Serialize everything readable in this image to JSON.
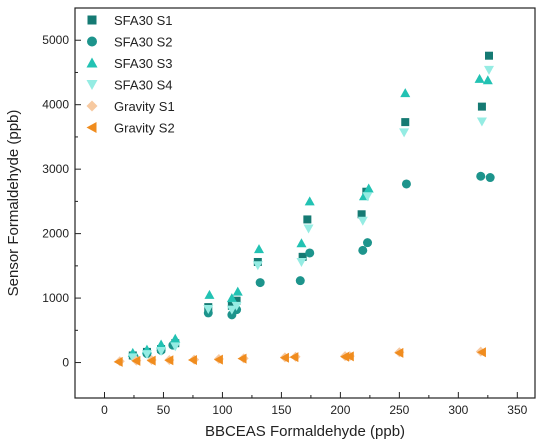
{
  "chart_data": {
    "type": "scatter",
    "title": "",
    "xlabel": "BBCEAS Formaldehyde (ppb)",
    "ylabel": "Sensor Formaldehyde (ppb)",
    "xlim": [
      -25,
      365
    ],
    "ylim": [
      -550,
      5500
    ],
    "x_ticks": [
      0,
      50,
      100,
      150,
      200,
      250,
      300,
      350
    ],
    "y_ticks": [
      0,
      1000,
      2000,
      3000,
      4000,
      5000
    ],
    "grid": false,
    "legend_position": "top-left",
    "series": [
      {
        "name": "SFA30 S1",
        "marker": "square",
        "color": "#157a73",
        "points": [
          [
            24,
            110
          ],
          [
            36,
            165
          ],
          [
            48,
            210
          ],
          [
            60,
            300
          ],
          [
            88,
            860
          ],
          [
            108,
            880
          ],
          [
            112,
            960
          ],
          [
            130,
            1560
          ],
          [
            168,
            1640
          ],
          [
            172,
            2220
          ],
          [
            218,
            2300
          ],
          [
            222,
            2650
          ],
          [
            255,
            3730
          ],
          [
            320,
            3970
          ],
          [
            326,
            4760
          ]
        ]
      },
      {
        "name": "SFA30 S2",
        "marker": "circle",
        "color": "#1d948c",
        "points": [
          [
            25,
            90
          ],
          [
            36,
            140
          ],
          [
            48,
            190
          ],
          [
            58,
            270
          ],
          [
            88,
            770
          ],
          [
            108,
            740
          ],
          [
            112,
            820
          ],
          [
            132,
            1240
          ],
          [
            166,
            1270
          ],
          [
            174,
            1700
          ],
          [
            219,
            1740
          ],
          [
            223,
            1860
          ],
          [
            256,
            2770
          ],
          [
            319,
            2890
          ],
          [
            327,
            2870
          ]
        ]
      },
      {
        "name": "SFA30 S3",
        "marker": "triangle-up",
        "color": "#22c2b3",
        "points": [
          [
            24,
            150
          ],
          [
            36,
            200
          ],
          [
            48,
            280
          ],
          [
            60,
            370
          ],
          [
            89,
            1050
          ],
          [
            108,
            1000
          ],
          [
            113,
            1100
          ],
          [
            131,
            1760
          ],
          [
            167,
            1850
          ],
          [
            174,
            2500
          ],
          [
            220,
            2580
          ],
          [
            224,
            2700
          ],
          [
            255,
            4180
          ],
          [
            318,
            4400
          ],
          [
            325,
            4380
          ]
        ]
      },
      {
        "name": "SFA30 S4",
        "marker": "triangle-down",
        "color": "#95ece3",
        "points": [
          [
            24,
            80
          ],
          [
            36,
            130
          ],
          [
            48,
            180
          ],
          [
            60,
            250
          ],
          [
            88,
            830
          ],
          [
            108,
            820
          ],
          [
            112,
            880
          ],
          [
            130,
            1510
          ],
          [
            167,
            1560
          ],
          [
            173,
            2080
          ],
          [
            219,
            2200
          ],
          [
            223,
            2580
          ],
          [
            254,
            3570
          ],
          [
            320,
            3740
          ],
          [
            326,
            4540
          ]
        ]
      },
      {
        "name": "Gravity S1",
        "marker": "diamond",
        "color": "#f7c9a0",
        "points": [
          [
            13,
            20
          ],
          [
            27,
            30
          ],
          [
            40,
            40
          ],
          [
            55,
            40
          ],
          [
            76,
            45
          ],
          [
            97,
            55
          ],
          [
            118,
            65
          ],
          [
            153,
            80
          ],
          [
            162,
            90
          ],
          [
            204,
            100
          ],
          [
            208,
            100
          ],
          [
            250,
            160
          ],
          [
            319,
            170
          ]
        ]
      },
      {
        "name": "Gravity S2",
        "marker": "triangle-left",
        "color": "#f08c1e",
        "points": [
          [
            12,
            10
          ],
          [
            27,
            25
          ],
          [
            40,
            30
          ],
          [
            55,
            35
          ],
          [
            75,
            40
          ],
          [
            97,
            45
          ],
          [
            117,
            60
          ],
          [
            153,
            75
          ],
          [
            161,
            85
          ],
          [
            204,
            90
          ],
          [
            208,
            95
          ],
          [
            250,
            150
          ],
          [
            320,
            160
          ]
        ]
      }
    ]
  }
}
